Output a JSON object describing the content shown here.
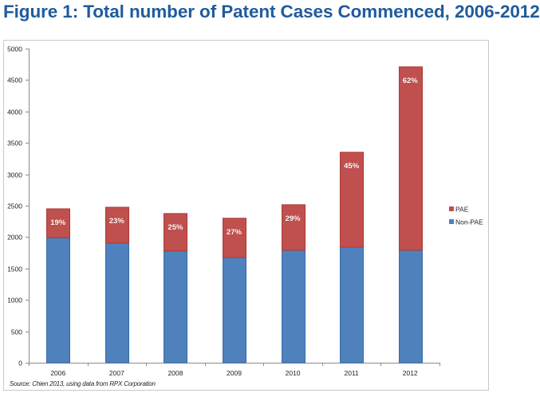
{
  "chart_data": {
    "type": "bar",
    "stacked": true,
    "title": "Figure 1: Total number of Patent Cases Commenced, 2006-2012",
    "xlabel": "",
    "ylabel": "",
    "categories": [
      "2006",
      "2007",
      "2008",
      "2009",
      "2010",
      "2011",
      "2012"
    ],
    "series": [
      {
        "name": "Non-PAE",
        "color": "#4f81bd",
        "border": "#3a6aa8",
        "values": [
          1990,
          1905,
          1780,
          1675,
          1790,
          1840,
          1790
        ]
      },
      {
        "name": "PAE",
        "color": "#c0504d",
        "border": "#a83a37",
        "values": [
          460,
          570,
          595,
          625,
          725,
          1510,
          2920
        ]
      }
    ],
    "bar_labels": [
      "19%",
      "23%",
      "25%",
      "27%",
      "29%",
      "45%",
      "62%"
    ],
    "ylim": [
      0,
      5000
    ],
    "yticks": [
      0,
      500,
      1000,
      1500,
      2000,
      2500,
      3000,
      3500,
      4000,
      4500,
      5000
    ],
    "grid": false,
    "legend": {
      "placement": "right",
      "entries": [
        "PAE",
        "Non-PAE"
      ]
    },
    "source": "Source: Chien 2013, using data from RPX Corporation"
  }
}
